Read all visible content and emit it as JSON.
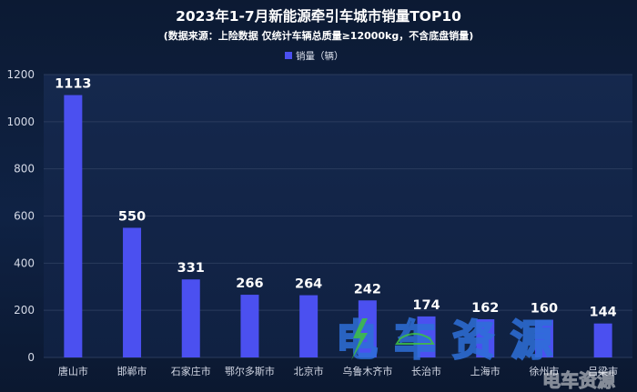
{
  "chart_data": {
    "type": "bar",
    "title": "2023年1-7月新能源牵引车城市销量TOP10",
    "subtitle": "(数据来源：上险数据 仅统计车辆总质量≥12000kg，不含底盘销量)",
    "legend": "销量（辆）",
    "legend_position": "top-center",
    "categories": [
      "唐山市",
      "邯郸市",
      "石家庄市",
      "鄂尔多斯市",
      "北京市",
      "乌鲁木齐市",
      "长治市",
      "上海市",
      "徐州市",
      "吕梁市"
    ],
    "series": [
      {
        "name": "销量（辆）",
        "values": [
          1113,
          550,
          331,
          266,
          264,
          242,
          174,
          162,
          160,
          144
        ]
      }
    ],
    "ylim": [
      0,
      1200
    ],
    "yticks": [
      0,
      200,
      400,
      600,
      800,
      1000,
      1200
    ],
    "grid": true,
    "colors": {
      "bar": "#4b50f0",
      "grid": "#2a3b5c",
      "text": "#ffffff",
      "axis_text": "#d4d9e6"
    }
  },
  "watermark": {
    "center": [
      "电",
      "车",
      "资",
      "源"
    ],
    "corner": "电车资源",
    "colors": {
      "blue": "#2e6fd8",
      "green": "#3dbb4a"
    }
  }
}
